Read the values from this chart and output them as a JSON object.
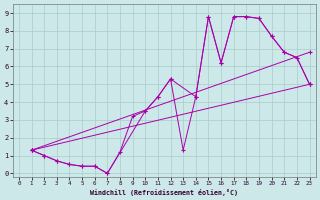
{
  "xlabel": "Windchill (Refroidissement éolien,°C)",
  "bg_color": "#cce8e8",
  "grid_color": "#aacccc",
  "line_color": "#aa00aa",
  "xlim": [
    -0.5,
    23.5
  ],
  "ylim": [
    -0.2,
    9.5
  ],
  "xticks": [
    0,
    1,
    2,
    3,
    4,
    5,
    6,
    7,
    8,
    9,
    10,
    11,
    12,
    13,
    14,
    15,
    16,
    17,
    18,
    19,
    20,
    21,
    22,
    23
  ],
  "yticks": [
    0,
    1,
    2,
    3,
    4,
    5,
    6,
    7,
    8,
    9
  ],
  "line1_x": [
    1,
    2,
    3,
    4,
    5,
    6,
    7,
    8,
    9,
    10,
    11,
    12,
    13,
    14,
    15,
    16,
    17,
    18,
    19,
    20,
    21,
    22,
    23
  ],
  "line1_y": [
    1.3,
    1.0,
    0.7,
    0.5,
    0.4,
    0.4,
    0.0,
    1.2,
    3.2,
    3.5,
    4.3,
    5.3,
    1.3,
    4.3,
    8.8,
    6.2,
    8.8,
    8.8,
    8.7,
    7.7,
    6.8,
    6.5,
    5.0
  ],
  "line2_x": [
    1,
    2,
    3,
    4,
    5,
    6,
    7,
    10,
    11,
    12,
    14,
    15,
    16,
    17,
    18,
    19,
    20,
    21,
    22,
    23
  ],
  "line2_y": [
    1.3,
    1.0,
    0.7,
    0.5,
    0.4,
    0.4,
    0.0,
    3.5,
    4.3,
    5.3,
    4.3,
    8.8,
    6.2,
    8.8,
    8.8,
    8.7,
    7.7,
    6.8,
    6.5,
    5.0
  ],
  "line3_x": [
    1,
    23
  ],
  "line3_y": [
    1.3,
    6.8
  ],
  "line4_x": [
    1,
    23
  ],
  "line4_y": [
    1.3,
    5.0
  ]
}
